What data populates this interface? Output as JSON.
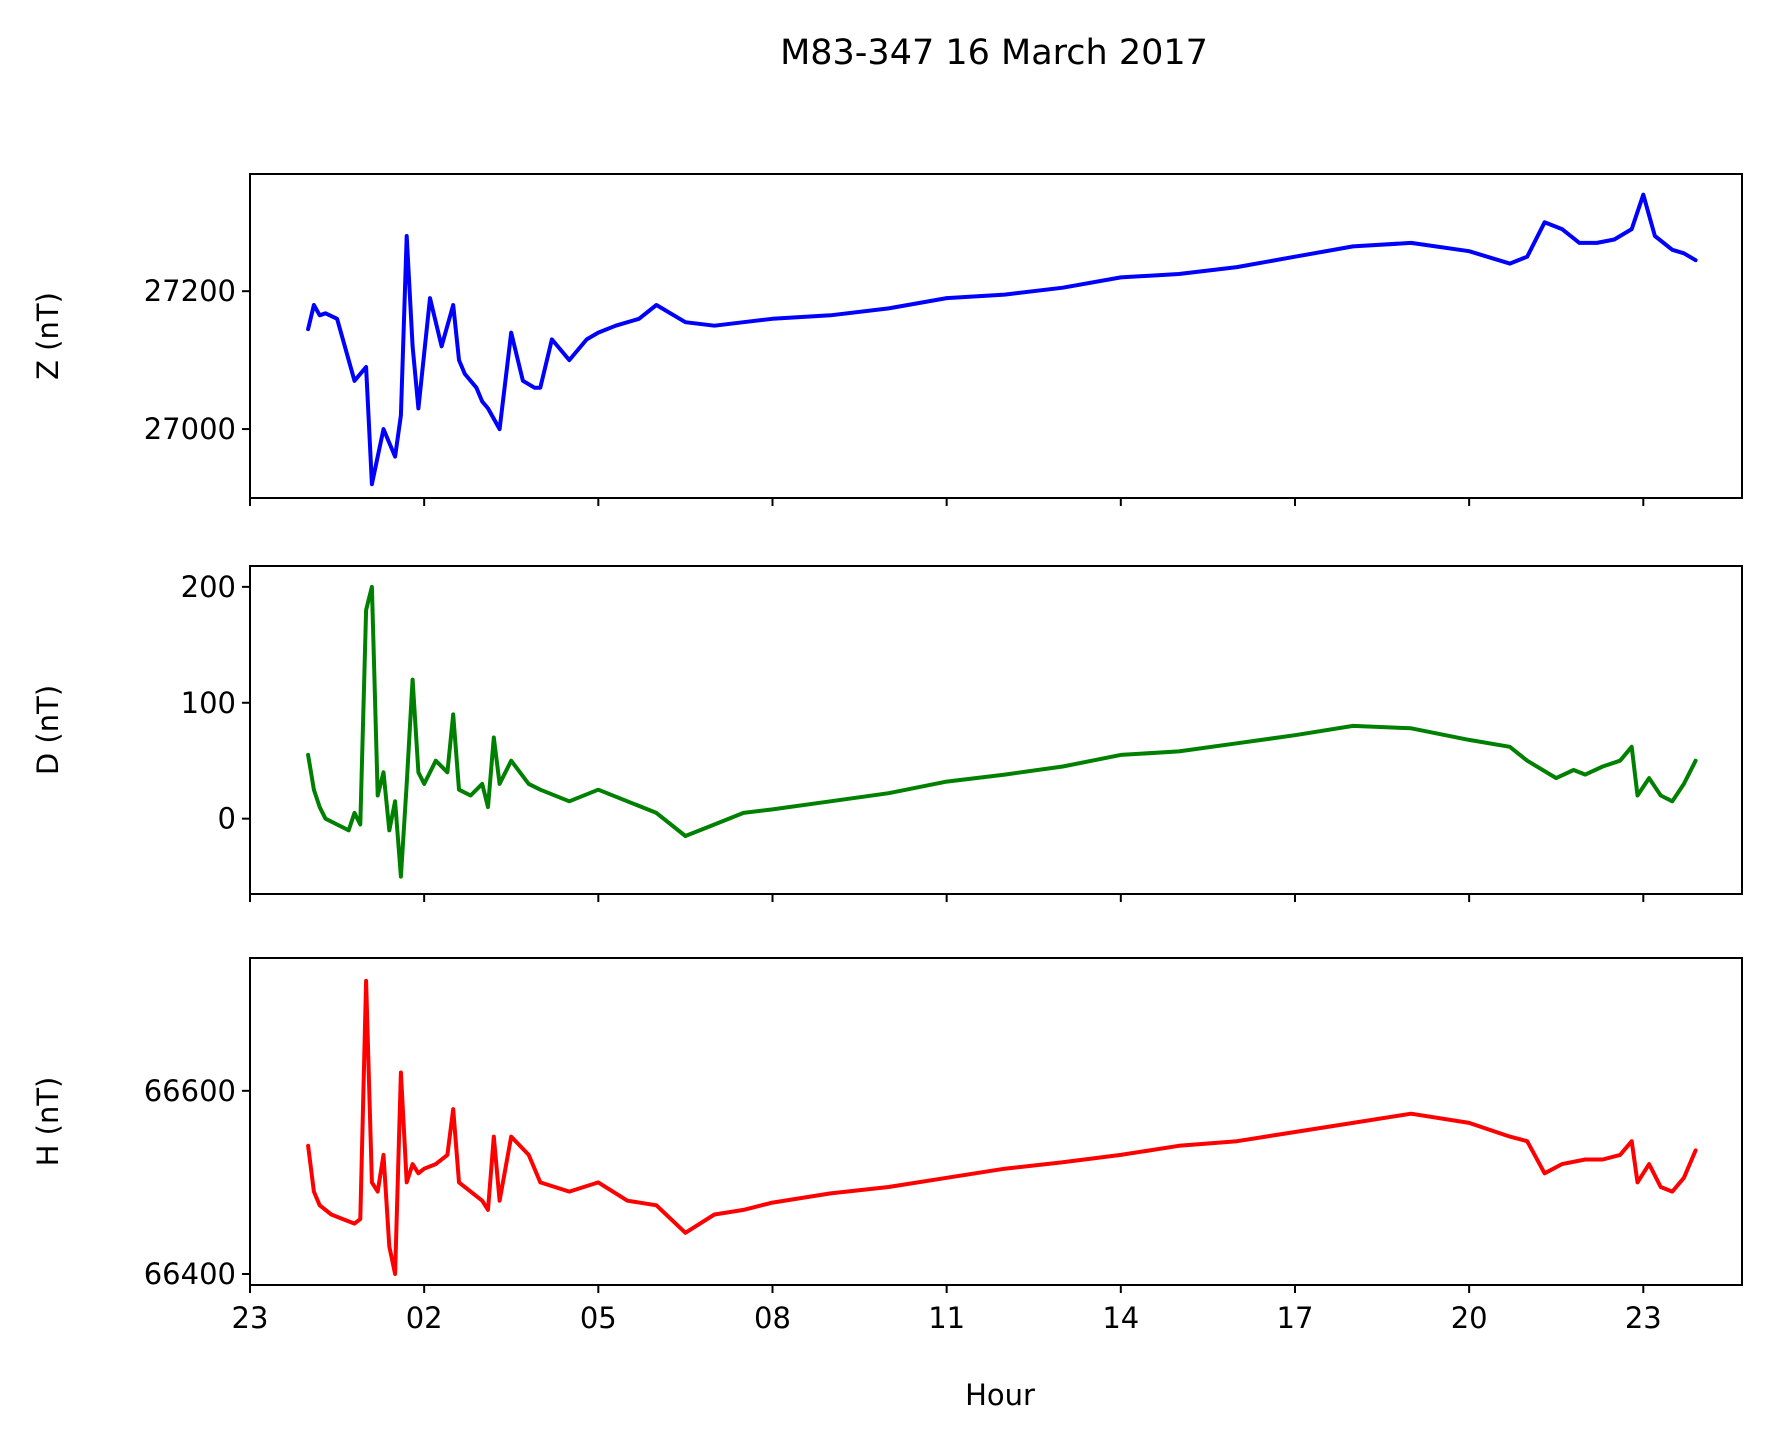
{
  "chart_data": {
    "type": "line",
    "title": "M83-347 16 March 2017",
    "xlabel": "Hour",
    "x_unit": "hour of day (time axis)",
    "xlim": [
      23,
      48.7
    ],
    "x_ticks": [
      {
        "value": 23,
        "label": "23"
      },
      {
        "value": 26,
        "label": "02"
      },
      {
        "value": 29,
        "label": "05"
      },
      {
        "value": 32,
        "label": "08"
      },
      {
        "value": 35,
        "label": "11"
      },
      {
        "value": 38,
        "label": "14"
      },
      {
        "value": 41,
        "label": "17"
      },
      {
        "value": 44,
        "label": "20"
      },
      {
        "value": 47,
        "label": "23"
      }
    ],
    "grid": false,
    "legend": "none",
    "panels": [
      {
        "ylabel": "Z (nT)",
        "color": "#0000ff",
        "ylim": [
          26900,
          27370
        ],
        "y_ticks": [
          27000,
          27200
        ],
        "show_x_labels": false,
        "series": {
          "x": [
            24.0,
            24.1,
            24.2,
            24.3,
            24.5,
            24.8,
            25.0,
            25.1,
            25.3,
            25.5,
            25.6,
            25.7,
            25.8,
            25.9,
            26.0,
            26.1,
            26.3,
            26.5,
            26.6,
            26.7,
            26.9,
            27.0,
            27.1,
            27.3,
            27.5,
            27.7,
            27.9,
            28.0,
            28.2,
            28.5,
            28.8,
            29.0,
            29.3,
            29.7,
            30.0,
            30.5,
            31.0,
            31.5,
            32.0,
            33.0,
            34.0,
            35.0,
            36.0,
            37.0,
            38.0,
            39.0,
            40.0,
            41.0,
            42.0,
            43.0,
            44.0,
            44.7,
            45.0,
            45.3,
            45.6,
            45.9,
            46.2,
            46.5,
            46.8,
            47.0,
            47.2,
            47.5,
            47.7,
            47.9
          ],
          "y": [
            27145,
            27180,
            27165,
            27168,
            27160,
            27070,
            27090,
            26920,
            27000,
            26960,
            27020,
            27280,
            27120,
            27030,
            27110,
            27190,
            27120,
            27180,
            27100,
            27080,
            27060,
            27040,
            27030,
            27000,
            27140,
            27070,
            27060,
            27060,
            27130,
            27100,
            27130,
            27140,
            27150,
            27160,
            27180,
            27155,
            27150,
            27155,
            27160,
            27165,
            27175,
            27190,
            27195,
            27205,
            27220,
            27225,
            27235,
            27250,
            27265,
            27270,
            27258,
            27240,
            27250,
            27300,
            27290,
            27270,
            27270,
            27275,
            27290,
            27340,
            27280,
            27260,
            27255,
            27245
          ]
        }
      },
      {
        "ylabel": "D (nT)",
        "color": "#008000",
        "ylim": [
          -65,
          218
        ],
        "y_ticks": [
          0,
          100,
          200
        ],
        "show_x_labels": false,
        "series": {
          "x": [
            24.0,
            24.1,
            24.2,
            24.3,
            24.5,
            24.7,
            24.8,
            24.9,
            25.0,
            25.1,
            25.2,
            25.3,
            25.4,
            25.5,
            25.6,
            25.7,
            25.8,
            25.9,
            26.0,
            26.2,
            26.4,
            26.5,
            26.6,
            26.8,
            27.0,
            27.1,
            27.2,
            27.3,
            27.5,
            27.8,
            28.0,
            28.5,
            29.0,
            29.5,
            30.0,
            30.5,
            31.0,
            31.5,
            32.0,
            33.0,
            34.0,
            35.0,
            36.0,
            37.0,
            38.0,
            39.0,
            40.0,
            41.0,
            42.0,
            43.0,
            44.0,
            44.7,
            45.0,
            45.5,
            45.8,
            46.0,
            46.3,
            46.6,
            46.8,
            46.9,
            47.1,
            47.3,
            47.5,
            47.7,
            47.9
          ],
          "y": [
            55,
            25,
            10,
            0,
            -5,
            -10,
            5,
            -5,
            180,
            200,
            20,
            40,
            -10,
            15,
            -50,
            30,
            120,
            40,
            30,
            50,
            40,
            90,
            25,
            20,
            30,
            10,
            70,
            30,
            50,
            30,
            25,
            15,
            25,
            15,
            5,
            -15,
            -5,
            5,
            8,
            15,
            22,
            32,
            38,
            45,
            55,
            58,
            65,
            72,
            80,
            78,
            68,
            62,
            50,
            35,
            42,
            38,
            45,
            50,
            62,
            20,
            35,
            20,
            15,
            30,
            50
          ]
        }
      },
      {
        "ylabel": "H (nT)",
        "color": "#ff0000",
        "ylim": [
          66388,
          66745
        ],
        "y_ticks": [
          66400,
          66600
        ],
        "show_x_labels": true,
        "series": {
          "x": [
            24.0,
            24.1,
            24.2,
            24.4,
            24.6,
            24.8,
            24.9,
            25.0,
            25.1,
            25.2,
            25.3,
            25.4,
            25.5,
            25.6,
            25.7,
            25.8,
            25.9,
            26.0,
            26.2,
            26.4,
            26.5,
            26.6,
            26.8,
            27.0,
            27.1,
            27.2,
            27.3,
            27.5,
            27.8,
            28.0,
            28.5,
            29.0,
            29.5,
            30.0,
            30.5,
            31.0,
            31.5,
            32.0,
            33.0,
            34.0,
            35.0,
            36.0,
            37.0,
            38.0,
            39.0,
            40.0,
            41.0,
            42.0,
            43.0,
            44.0,
            44.7,
            45.0,
            45.3,
            45.6,
            46.0,
            46.3,
            46.6,
            46.8,
            46.9,
            47.1,
            47.3,
            47.5,
            47.7,
            47.9
          ],
          "y": [
            66540,
            66490,
            66475,
            66465,
            66460,
            66455,
            66460,
            66720,
            66500,
            66490,
            66530,
            66430,
            66400,
            66620,
            66500,
            66520,
            66510,
            66515,
            66520,
            66530,
            66580,
            66500,
            66490,
            66480,
            66470,
            66550,
            66480,
            66550,
            66530,
            66500,
            66490,
            66500,
            66480,
            66475,
            66445,
            66465,
            66470,
            66478,
            66488,
            66495,
            66505,
            66515,
            66522,
            66530,
            66540,
            66545,
            66555,
            66565,
            66575,
            66565,
            66550,
            66545,
            66510,
            66520,
            66525,
            66525,
            66530,
            66545,
            66500,
            66520,
            66495,
            66490,
            66505,
            66535
          ]
        }
      }
    ]
  }
}
